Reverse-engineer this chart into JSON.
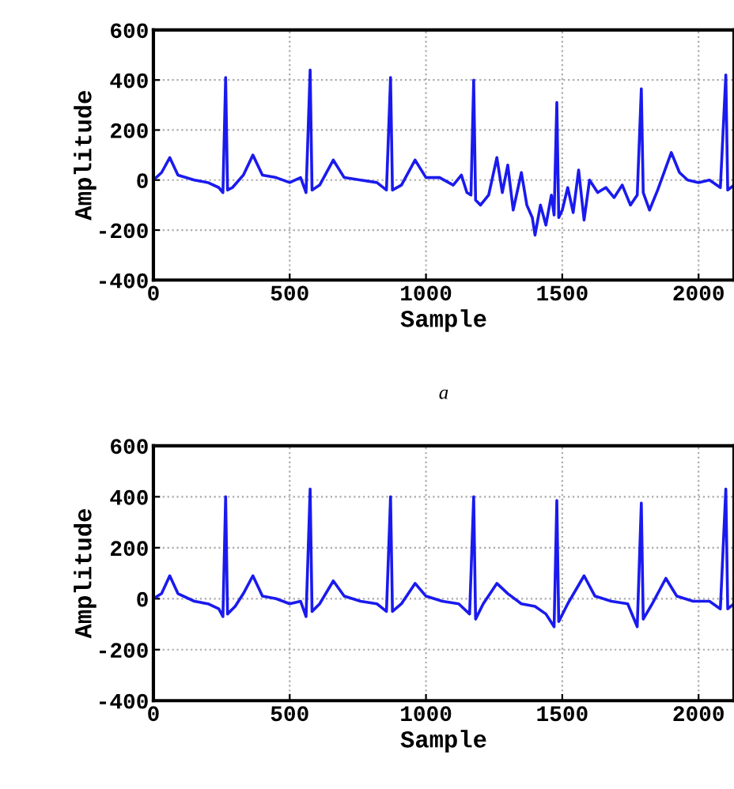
{
  "chart_data": [
    {
      "type": "line",
      "xlabel": "Sample",
      "ylabel": "Amplitude",
      "annotations": [
        "a"
      ],
      "xlim": [
        0,
        2130
      ],
      "ylim": [
        -400,
        600
      ],
      "xticks": [
        0,
        500,
        1000,
        1500,
        2000
      ],
      "yticks": [
        -400,
        -200,
        0,
        200,
        400,
        600
      ],
      "grid": true,
      "line_style": "solid",
      "series": [
        {
          "color": "#1a1aee",
          "x": [
            0,
            30,
            60,
            90,
            150,
            200,
            240,
            255,
            265,
            272,
            290,
            330,
            365,
            400,
            450,
            500,
            540,
            560,
            575,
            582,
            610,
            660,
            700,
            760,
            820,
            855,
            870,
            877,
            910,
            960,
            1000,
            1050,
            1100,
            1130,
            1150,
            1165,
            1175,
            1182,
            1200,
            1230,
            1260,
            1280,
            1300,
            1320,
            1350,
            1370,
            1390,
            1400,
            1420,
            1440,
            1460,
            1470,
            1480,
            1487,
            1500,
            1520,
            1540,
            1560,
            1580,
            1600,
            1630,
            1660,
            1690,
            1720,
            1750,
            1775,
            1790,
            1797,
            1820,
            1850,
            1900,
            1930,
            1960,
            2000,
            2040,
            2080,
            2100,
            2107,
            2130
          ],
          "values": [
            0,
            30,
            90,
            20,
            0,
            -10,
            -30,
            -50,
            410,
            -40,
            -30,
            20,
            100,
            20,
            10,
            -10,
            10,
            -50,
            440,
            -40,
            -20,
            80,
            10,
            0,
            -10,
            -40,
            410,
            -40,
            -20,
            80,
            10,
            10,
            -20,
            20,
            -50,
            -60,
            400,
            -80,
            -100,
            -60,
            90,
            -50,
            60,
            -120,
            30,
            -100,
            -150,
            -220,
            -100,
            -180,
            -60,
            -140,
            310,
            -150,
            -120,
            -30,
            -130,
            40,
            -160,
            0,
            -50,
            -30,
            -70,
            -20,
            -100,
            -60,
            365,
            -50,
            -120,
            -40,
            110,
            30,
            0,
            -10,
            0,
            -30,
            420,
            -40,
            -20
          ]
        }
      ]
    },
    {
      "type": "line",
      "xlabel": "Sample",
      "ylabel": "Amplitude",
      "xlim": [
        0,
        2130
      ],
      "ylim": [
        -400,
        600
      ],
      "xticks": [
        0,
        500,
        1000,
        1500,
        2000
      ],
      "yticks": [
        -400,
        -200,
        0,
        200,
        400,
        600
      ],
      "grid": true,
      "line_style": "solid",
      "series": [
        {
          "color": "#1a1aee",
          "x": [
            0,
            30,
            60,
            90,
            150,
            200,
            240,
            255,
            265,
            272,
            300,
            330,
            365,
            400,
            450,
            500,
            540,
            560,
            575,
            582,
            610,
            660,
            700,
            760,
            820,
            855,
            870,
            877,
            910,
            960,
            1000,
            1060,
            1120,
            1160,
            1175,
            1182,
            1210,
            1260,
            1300,
            1350,
            1400,
            1440,
            1470,
            1480,
            1487,
            1520,
            1580,
            1620,
            1680,
            1740,
            1775,
            1790,
            1797,
            1830,
            1880,
            1920,
            1980,
            2040,
            2080,
            2100,
            2107,
            2130
          ],
          "values": [
            0,
            20,
            90,
            20,
            -10,
            -20,
            -40,
            -70,
            400,
            -60,
            -30,
            20,
            90,
            10,
            0,
            -20,
            -10,
            -70,
            430,
            -50,
            -20,
            70,
            10,
            -10,
            -20,
            -50,
            400,
            -50,
            -20,
            60,
            10,
            -10,
            -20,
            -60,
            400,
            -80,
            -20,
            60,
            20,
            -20,
            -30,
            -60,
            -110,
            385,
            -90,
            -20,
            90,
            10,
            -10,
            -20,
            -110,
            375,
            -80,
            -20,
            80,
            10,
            -10,
            -10,
            -40,
            430,
            -40,
            -20
          ]
        }
      ]
    }
  ]
}
